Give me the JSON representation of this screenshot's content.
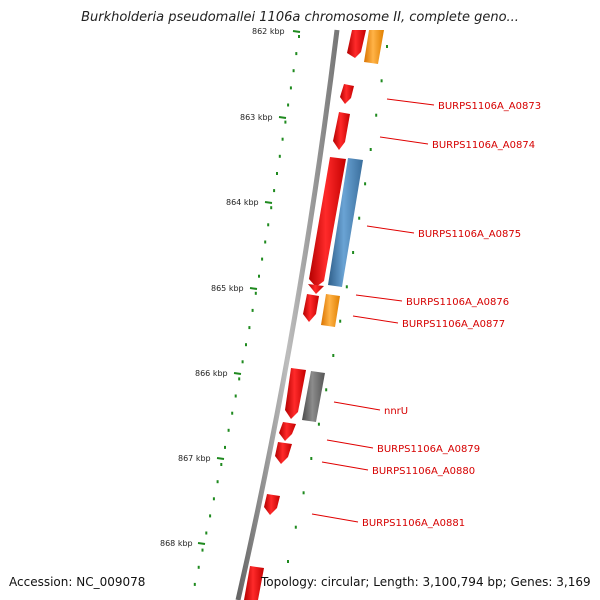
{
  "header": {
    "title": "Burkholderia pseudomallei 1106a chromosome II, complete geno..."
  },
  "footer": {
    "accession": "Accession: NC_009078",
    "summary": "Topology: circular; Length: 3,100,794 bp; Genes: 3,169"
  },
  "map": {
    "tick_labels": [
      "862 kbp",
      "863 kbp",
      "864 kbp",
      "865 kbp",
      "866 kbp",
      "867 kbp",
      "868 kbp"
    ],
    "gene_labels": [
      "BURPS1106A_A0873",
      "BURPS1106A_A0874",
      "BURPS1106A_A0875",
      "BURPS1106A_A0876",
      "BURPS1106A_A0877",
      "nnrU",
      "BURPS1106A_A0879",
      "BURPS1106A_A0880",
      "BURPS1106A_A0881"
    ],
    "colors": {
      "forward_gene": "#ff1a1a",
      "reverse_gene_blue": "#4a86b8",
      "reverse_gene_orange": "#ff9a1a",
      "reverse_gene_gray": "#6e6e6e",
      "tick_mark": "#1f8a1f",
      "backbone": "#8a8a8a",
      "label_text": "#d60000"
    }
  }
}
